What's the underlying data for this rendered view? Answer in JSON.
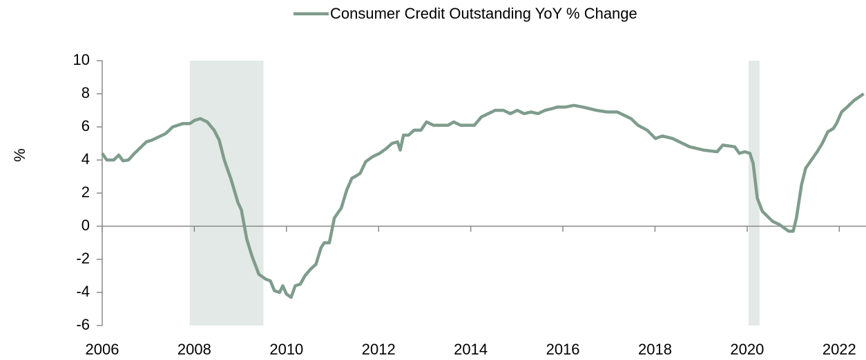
{
  "chart_data": {
    "type": "line",
    "y_label": "%",
    "shaded_periods": [
      [
        2007.9,
        2009.5
      ],
      [
        2020.03,
        2020.27
      ]
    ],
    "shade_color": "#e3e9e6",
    "xlim": [
      2006,
      2022.58
    ],
    "xticks": [
      2006,
      2008,
      2010,
      2012,
      2014,
      2016,
      2018,
      2020,
      2022
    ],
    "ylim": [
      -6,
      10
    ],
    "yticks": [
      -6,
      -4,
      -2,
      0,
      2,
      4,
      6,
      8,
      10
    ],
    "legend": "top",
    "series": [
      {
        "name": "Consumer Credit Outstanding YoY % Change",
        "color": "#7f9c8c",
        "x": [
          2006.0,
          2006.1,
          2006.25,
          2006.36,
          2006.45,
          2006.57,
          2006.7,
          2006.85,
          2006.96,
          2007.08,
          2007.23,
          2007.38,
          2007.53,
          2007.75,
          2007.9,
          2008.01,
          2008.13,
          2008.28,
          2008.43,
          2008.54,
          2008.65,
          2008.8,
          2008.95,
          2009.02,
          2009.14,
          2009.25,
          2009.4,
          2009.55,
          2009.65,
          2009.74,
          2009.85,
          2009.92,
          2010.0,
          2010.1,
          2010.19,
          2010.3,
          2010.4,
          2010.52,
          2010.64,
          2010.75,
          2010.82,
          2010.93,
          2011.04,
          2011.19,
          2011.31,
          2011.42,
          2011.49,
          2011.6,
          2011.72,
          2011.87,
          2012.02,
          2012.17,
          2012.29,
          2012.41,
          2012.47,
          2012.54,
          2012.65,
          2012.77,
          2012.92,
          2013.04,
          2013.19,
          2013.37,
          2013.51,
          2013.63,
          2013.78,
          2013.93,
          2014.08,
          2014.23,
          2014.38,
          2014.53,
          2014.71,
          2014.86,
          2015.01,
          2015.16,
          2015.31,
          2015.46,
          2015.61,
          2015.76,
          2015.88,
          2016.06,
          2016.24,
          2016.43,
          2016.58,
          2016.73,
          2016.96,
          2017.18,
          2017.33,
          2017.48,
          2017.63,
          2017.83,
          2018.01,
          2018.16,
          2018.38,
          2018.75,
          2019.05,
          2019.35,
          2019.47,
          2019.73,
          2019.83,
          2019.95,
          2020.06,
          2020.13,
          2020.22,
          2020.33,
          2020.55,
          2020.7,
          2020.9,
          2021.0,
          2021.07,
          2021.18,
          2021.27,
          2021.37,
          2021.52,
          2021.63,
          2021.75,
          2021.87,
          2021.94,
          2022.05,
          2022.17,
          2022.32,
          2022.53
        ],
        "values": [
          4.4,
          4.0,
          4.0,
          4.3,
          3.95,
          4.0,
          4.4,
          4.8,
          5.1,
          5.2,
          5.4,
          5.6,
          6.0,
          6.2,
          6.2,
          6.4,
          6.5,
          6.3,
          5.8,
          5.2,
          4.0,
          2.8,
          1.4,
          1.0,
          -0.8,
          -1.8,
          -2.9,
          -3.2,
          -3.3,
          -3.9,
          -4.0,
          -3.6,
          -4.1,
          -4.3,
          -3.6,
          -3.5,
          -3.0,
          -2.6,
          -2.3,
          -1.3,
          -1.0,
          -1.0,
          0.5,
          1.1,
          2.2,
          2.9,
          3.0,
          3.2,
          3.9,
          4.2,
          4.4,
          4.7,
          5.0,
          5.1,
          4.6,
          5.5,
          5.5,
          5.8,
          5.8,
          6.3,
          6.1,
          6.1,
          6.1,
          6.3,
          6.1,
          6.1,
          6.1,
          6.6,
          6.8,
          7.0,
          7.0,
          6.8,
          7.0,
          6.8,
          6.9,
          6.8,
          7.0,
          7.1,
          7.2,
          7.2,
          7.3,
          7.2,
          7.1,
          7.0,
          6.9,
          6.9,
          6.7,
          6.5,
          6.1,
          5.8,
          5.3,
          5.45,
          5.3,
          4.8,
          4.6,
          4.5,
          4.9,
          4.8,
          4.4,
          4.5,
          4.4,
          3.8,
          1.7,
          0.9,
          0.3,
          0.1,
          -0.3,
          -0.3,
          0.5,
          2.5,
          3.5,
          3.9,
          4.5,
          5.0,
          5.7,
          5.9,
          6.2,
          6.9,
          7.2,
          7.6,
          8.0
        ]
      }
    ]
  }
}
